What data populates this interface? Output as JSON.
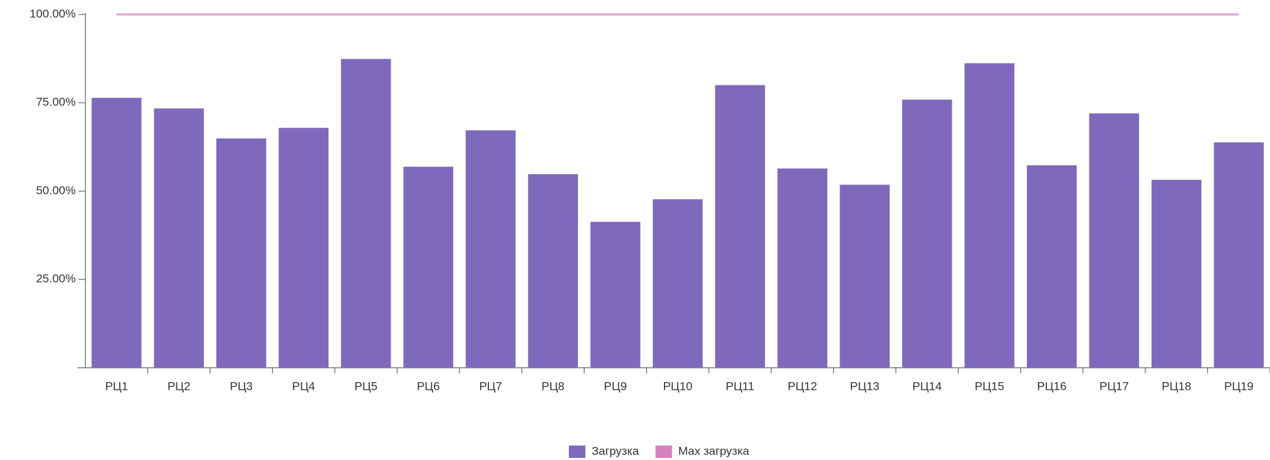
{
  "chart_data": {
    "type": "bar",
    "categories": [
      "РЦ1",
      "РЦ2",
      "РЦ3",
      "РЦ4",
      "РЦ5",
      "РЦ6",
      "РЦ7",
      "РЦ8",
      "РЦ9",
      "РЦ10",
      "РЦ11",
      "РЦ12",
      "РЦ13",
      "РЦ14",
      "РЦ15",
      "РЦ16",
      "РЦ17",
      "РЦ18",
      "РЦ19"
    ],
    "series": [
      {
        "name": "Загрузка",
        "color": "#7f69bd",
        "values": [
          76.4,
          73.4,
          64.9,
          67.9,
          87.4,
          56.9,
          67.2,
          54.8,
          41.3,
          47.7,
          80.0,
          56.4,
          51.8,
          75.9,
          86.2,
          57.3,
          72.0,
          53.2,
          63.8
        ]
      },
      {
        "name": "Max загрузка",
        "color": "#e4a0d4",
        "type": "line",
        "values": [
          100,
          100,
          100,
          100,
          100,
          100,
          100,
          100,
          100,
          100,
          100,
          100,
          100,
          100,
          100,
          100,
          100,
          100,
          100
        ]
      }
    ],
    "ylim": [
      0,
      100
    ],
    "yticks": [
      {
        "value": 25,
        "label": "25.00%"
      },
      {
        "value": 50,
        "label": "50.00%"
      },
      {
        "value": 75,
        "label": "75.00%"
      },
      {
        "value": 100,
        "label": "100.00%"
      }
    ],
    "grid": false,
    "legend": "bottom"
  }
}
